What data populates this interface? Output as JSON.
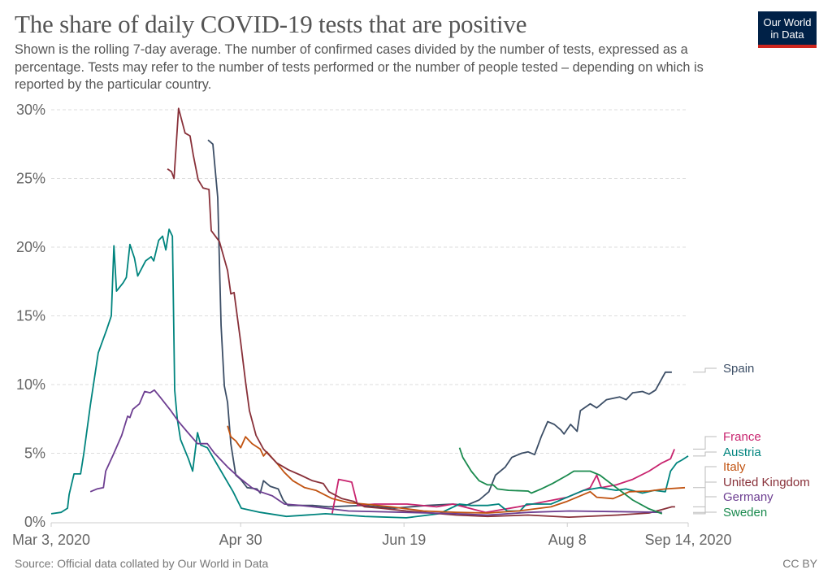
{
  "header": {
    "title": "The share of daily COVID-19 tests that are positive",
    "subtitle": "Shown is the rolling 7-day average. The number of confirmed cases divided by the number of tests, expressed as a percentage. Tests may refer to the number of tests performed or the number of people tested – depending on which is reported by the particular country.",
    "logo": "Our World in Data"
  },
  "footer": {
    "source": "Source: Official data collated by Our World in Data",
    "license": "CC BY"
  },
  "chart_data": {
    "type": "line",
    "title": "The share of daily COVID-19 tests that are positive",
    "xlabel": "",
    "ylabel": "",
    "x_unit": "days since Mar 3, 2020",
    "xlim": [
      0,
      195
    ],
    "ylim": [
      0,
      30
    ],
    "grid": true,
    "legend_placement": "right (end labels)",
    "y_ticks": [
      {
        "value": 0,
        "label": "0%"
      },
      {
        "value": 5,
        "label": "5%"
      },
      {
        "value": 10,
        "label": "10%"
      },
      {
        "value": 15,
        "label": "15%"
      },
      {
        "value": 20,
        "label": "20%"
      },
      {
        "value": 25,
        "label": "25%"
      },
      {
        "value": 30,
        "label": "30%"
      }
    ],
    "x_ticks": [
      {
        "value": 0,
        "label": "Mar 3, 2020"
      },
      {
        "value": 58,
        "label": "Apr 30"
      },
      {
        "value": 108,
        "label": "Jun 19"
      },
      {
        "value": 158,
        "label": "Aug 8"
      },
      {
        "value": 195,
        "label": "Sep 14, 2020"
      }
    ],
    "series": [
      {
        "name": "Spain",
        "color": "#3c4e66",
        "points": [
          [
            48,
            27.8
          ],
          [
            49.5,
            27.5
          ],
          [
            51,
            23.6
          ],
          [
            52,
            14.3
          ],
          [
            53,
            9.9
          ],
          [
            54,
            8.7
          ],
          [
            55,
            5.7
          ],
          [
            56.5,
            3.4
          ],
          [
            58,
            3.1
          ],
          [
            60,
            2.5
          ],
          [
            63,
            2.4
          ],
          [
            64,
            2.1
          ],
          [
            65,
            3.0
          ],
          [
            67,
            2.6
          ],
          [
            69.5,
            2.4
          ],
          [
            71,
            1.6
          ],
          [
            72.5,
            1.2
          ],
          [
            80,
            1.2
          ],
          [
            85,
            1.1
          ],
          [
            95,
            1.2
          ],
          [
            105,
            1.0
          ],
          [
            115,
            1.2
          ],
          [
            123,
            1.3
          ],
          [
            127,
            1.2
          ],
          [
            131,
            1.6
          ],
          [
            134,
            2.2
          ],
          [
            136,
            3.4
          ],
          [
            139,
            4.0
          ],
          [
            141,
            4.7
          ],
          [
            144,
            5.0
          ],
          [
            146,
            5.1
          ],
          [
            148,
            4.9
          ],
          [
            150,
            6.2
          ],
          [
            152,
            7.3
          ],
          [
            154,
            7.1
          ],
          [
            156,
            6.7
          ],
          [
            157,
            6.4
          ],
          [
            159,
            7.1
          ],
          [
            161,
            6.6
          ],
          [
            162,
            8.1
          ],
          [
            165,
            8.6
          ],
          [
            167,
            8.3
          ],
          [
            170,
            8.9
          ],
          [
            174,
            9.1
          ],
          [
            176,
            8.9
          ],
          [
            178,
            9.4
          ],
          [
            181,
            9.5
          ],
          [
            183,
            9.3
          ],
          [
            185,
            9.6
          ],
          [
            188,
            10.9
          ],
          [
            190,
            10.9
          ]
        ]
      },
      {
        "name": "France",
        "color": "#c8236e",
        "points": [
          [
            86,
            0.6
          ],
          [
            88,
            3.1
          ],
          [
            90,
            3.0
          ],
          [
            92,
            2.9
          ],
          [
            93.8,
            1.2
          ],
          [
            99,
            1.3
          ],
          [
            109,
            1.3
          ],
          [
            118,
            1.1
          ],
          [
            123,
            1.3
          ],
          [
            133,
            0.7
          ],
          [
            143,
            1.1
          ],
          [
            158,
            1.8
          ],
          [
            165,
            2.5
          ],
          [
            167,
            3.4
          ],
          [
            168.4,
            2.5
          ],
          [
            173,
            2.7
          ],
          [
            178,
            3.1
          ],
          [
            183,
            3.7
          ],
          [
            187,
            4.3
          ],
          [
            189.6,
            4.6
          ],
          [
            190.8,
            5.3
          ]
        ]
      },
      {
        "name": "Austria",
        "color": "#00847e",
        "points": [
          [
            0,
            0.6
          ],
          [
            3,
            0.7
          ],
          [
            5,
            1.0
          ],
          [
            5.5,
            2.0
          ],
          [
            7,
            3.5
          ],
          [
            9,
            3.5
          ],
          [
            10,
            5.0
          ],
          [
            12,
            8.5
          ],
          [
            14.4,
            12.3
          ],
          [
            17,
            14.0
          ],
          [
            18.4,
            15.0
          ],
          [
            19.2,
            20.1
          ],
          [
            20,
            16.8
          ],
          [
            22,
            17.4
          ],
          [
            23,
            17.8
          ],
          [
            24.1,
            20.2
          ],
          [
            25.5,
            19.2
          ],
          [
            26.5,
            17.9
          ],
          [
            28.9,
            19.0
          ],
          [
            30.6,
            19.3
          ],
          [
            31.4,
            19.0
          ],
          [
            32.9,
            20.5
          ],
          [
            34.1,
            20.8
          ],
          [
            35.1,
            19.8
          ],
          [
            36.1,
            21.3
          ],
          [
            37.1,
            20.8
          ],
          [
            37.8,
            9.6
          ],
          [
            38.6,
            7.5
          ],
          [
            39.6,
            6.0
          ],
          [
            42,
            4.6
          ],
          [
            43.3,
            3.7
          ],
          [
            44.8,
            6.5
          ],
          [
            45.8,
            5.6
          ],
          [
            47.8,
            5.4
          ],
          [
            52,
            3.7
          ],
          [
            55.7,
            2.2
          ],
          [
            58.2,
            1.0
          ],
          [
            64,
            0.7
          ],
          [
            72,
            0.4
          ],
          [
            84,
            0.6
          ],
          [
            96,
            0.4
          ],
          [
            108.7,
            0.3
          ],
          [
            118.7,
            0.6
          ],
          [
            125,
            1.3
          ],
          [
            128.6,
            1.2
          ],
          [
            133.6,
            1.2
          ],
          [
            137,
            1.3
          ],
          [
            139.6,
            0.8
          ],
          [
            143.5,
            0.8
          ],
          [
            145.5,
            1.3
          ],
          [
            153,
            1.3
          ],
          [
            158,
            1.8
          ],
          [
            163,
            2.3
          ],
          [
            168,
            2.5
          ],
          [
            173,
            2.3
          ],
          [
            175.9,
            2.4
          ],
          [
            181,
            2.1
          ],
          [
            184.6,
            2.3
          ],
          [
            188,
            2.2
          ],
          [
            189.6,
            3.7
          ],
          [
            191.5,
            4.3
          ],
          [
            193,
            4.5
          ],
          [
            195,
            4.8
          ]
        ]
      },
      {
        "name": "Italy",
        "color": "#c15311",
        "points": [
          [
            54,
            7.0
          ],
          [
            55,
            6.2
          ],
          [
            56.5,
            5.9
          ],
          [
            58,
            5.4
          ],
          [
            59.5,
            6.2
          ],
          [
            61.5,
            5.7
          ],
          [
            64,
            5.3
          ],
          [
            65,
            4.8
          ],
          [
            66,
            5.1
          ],
          [
            69,
            4.3
          ],
          [
            71.4,
            3.6
          ],
          [
            74,
            3.0
          ],
          [
            77.6,
            2.5
          ],
          [
            81,
            2.3
          ],
          [
            86,
            1.7
          ],
          [
            91,
            1.4
          ],
          [
            96,
            1.3
          ],
          [
            104,
            1.1
          ],
          [
            114,
            0.8
          ],
          [
            124,
            0.7
          ],
          [
            133.6,
            0.65
          ],
          [
            143,
            0.8
          ],
          [
            153,
            1.1
          ],
          [
            158,
            1.5
          ],
          [
            165,
            2.2
          ],
          [
            167,
            1.8
          ],
          [
            172,
            1.7
          ],
          [
            177,
            2.2
          ],
          [
            183,
            2.25
          ],
          [
            188,
            2.4
          ],
          [
            194,
            2.5
          ]
        ]
      },
      {
        "name": "United Kingdom",
        "color": "#883039",
        "points": [
          [
            35.6,
            25.7
          ],
          [
            36.8,
            25.5
          ],
          [
            37.6,
            25.0
          ],
          [
            39,
            30.1
          ],
          [
            41,
            28.3
          ],
          [
            42.5,
            28.1
          ],
          [
            43.5,
            26.7
          ],
          [
            45,
            24.9
          ],
          [
            46.5,
            24.3
          ],
          [
            48.3,
            24.2
          ],
          [
            49,
            21.2
          ],
          [
            51.5,
            20.4
          ],
          [
            54,
            18.3
          ],
          [
            55,
            16.6
          ],
          [
            56,
            16.7
          ],
          [
            58,
            13.1
          ],
          [
            59.5,
            10.2
          ],
          [
            60.7,
            8.1
          ],
          [
            62.7,
            6.3
          ],
          [
            65,
            5.3
          ],
          [
            69,
            4.3
          ],
          [
            72.6,
            3.8
          ],
          [
            76.4,
            3.4
          ],
          [
            80,
            3.0
          ],
          [
            83.3,
            2.8
          ],
          [
            85,
            2.2
          ],
          [
            89,
            1.7
          ],
          [
            92.5,
            1.5
          ],
          [
            96,
            1.1
          ],
          [
            101,
            1.0
          ],
          [
            108.7,
            0.8
          ],
          [
            124,
            0.5
          ],
          [
            133.6,
            0.4
          ],
          [
            146,
            0.5
          ],
          [
            158.5,
            0.35
          ],
          [
            173.4,
            0.5
          ],
          [
            183,
            0.65
          ],
          [
            187,
            0.9
          ],
          [
            190,
            1.1
          ],
          [
            191,
            1.1
          ]
        ]
      },
      {
        "name": "Germany",
        "color": "#6d3e91",
        "points": [
          [
            12,
            2.2
          ],
          [
            14,
            2.4
          ],
          [
            16,
            2.5
          ],
          [
            16.7,
            3.7
          ],
          [
            19,
            4.9
          ],
          [
            21.6,
            6.3
          ],
          [
            23.4,
            7.7
          ],
          [
            24.1,
            7.6
          ],
          [
            25,
            8.2
          ],
          [
            27,
            8.6
          ],
          [
            28.6,
            9.5
          ],
          [
            30.3,
            9.4
          ],
          [
            31.6,
            9.6
          ],
          [
            33.3,
            9.1
          ],
          [
            36.6,
            8.1
          ],
          [
            39,
            7.3
          ],
          [
            41.5,
            6.6
          ],
          [
            44.8,
            5.7
          ],
          [
            47.8,
            5.7
          ],
          [
            50,
            5.0
          ],
          [
            54,
            4.0
          ],
          [
            57.7,
            3.2
          ],
          [
            61.4,
            2.5
          ],
          [
            64,
            2.2
          ],
          [
            67.7,
            1.9
          ],
          [
            71.4,
            1.3
          ],
          [
            76.4,
            1.2
          ],
          [
            84,
            1.0
          ],
          [
            91,
            0.8
          ],
          [
            108.7,
            0.7
          ],
          [
            124,
            0.6
          ],
          [
            133.6,
            0.5
          ],
          [
            146,
            0.7
          ],
          [
            158.5,
            0.8
          ],
          [
            173.4,
            0.75
          ],
          [
            187,
            0.7
          ]
        ]
      },
      {
        "name": "Sweden",
        "color": "#1a8a4e",
        "points": [
          [
            125,
            5.4
          ],
          [
            126,
            4.7
          ],
          [
            128.6,
            3.7
          ],
          [
            131,
            3.0
          ],
          [
            133.6,
            2.7
          ],
          [
            135.3,
            2.7
          ],
          [
            136.6,
            2.4
          ],
          [
            140,
            2.3
          ],
          [
            146,
            2.25
          ],
          [
            147,
            2.1
          ],
          [
            150,
            2.4
          ],
          [
            153.5,
            2.8
          ],
          [
            158,
            3.4
          ],
          [
            160,
            3.7
          ],
          [
            165,
            3.7
          ],
          [
            168,
            3.4
          ],
          [
            173,
            2.5
          ],
          [
            178,
            1.6
          ],
          [
            183,
            0.95
          ],
          [
            187,
            0.6
          ]
        ]
      }
    ]
  }
}
